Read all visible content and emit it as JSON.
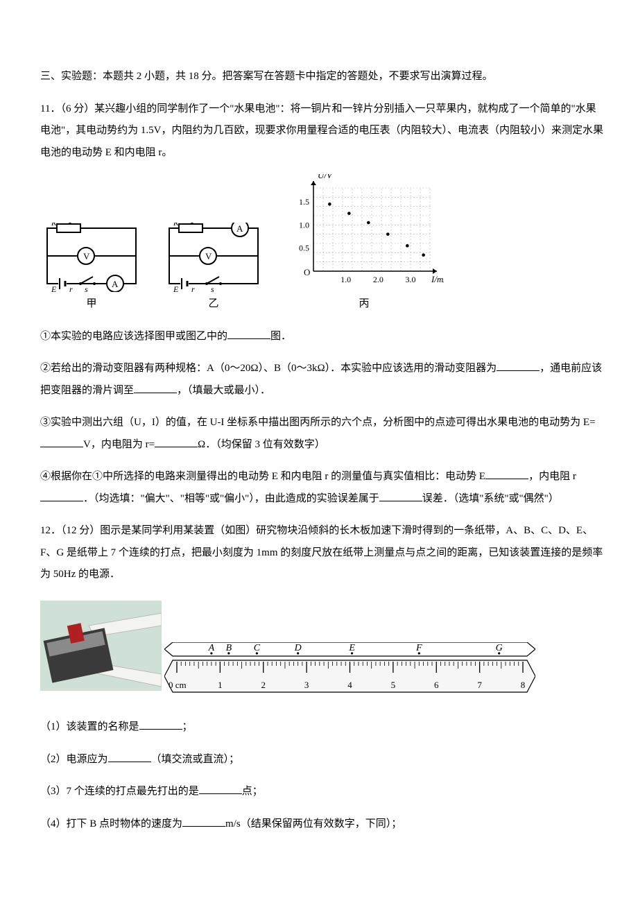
{
  "section_header": "三、实验题：本题共 2 小题，共 18 分。把答案写在答题卡中指定的答题处，不要求写出演算过程。",
  "q11": {
    "lead": "11．（6 分）某兴趣小组的同学制作了一个\"水果电池\"：将一铜片和一锌片分别插入一只苹果内，就构成了一个简单的\"水果电池\"，其电动势约为 1.5V，内阻约为几百欧，现要求你用量程合适的电压表（内阻较大）、电流表（内阻较小）来测定水果电池的电动势 E 和内电阻 r。",
    "circuit_jia_label": "甲",
    "circuit_yi_label": "乙",
    "chart": {
      "ylabel": "U/V",
      "xlabel": "I/mA",
      "yticks": [
        "0.5",
        "1.0",
        "1.5"
      ],
      "xticks": [
        "1.0",
        "2.0",
        "3.0"
      ],
      "caption": "丙",
      "axis_color": "#000000",
      "grid_color": "#9a9a9a",
      "point_color": "#000000",
      "bg": "#ffffff",
      "ylim": [
        0,
        1.8
      ],
      "xlim": [
        0,
        3.6
      ],
      "points": [
        [
          0.5,
          1.45
        ],
        [
          1.1,
          1.25
        ],
        [
          1.7,
          1.05
        ],
        [
          2.3,
          0.8
        ],
        [
          2.9,
          0.55
        ],
        [
          3.4,
          0.35
        ]
      ]
    },
    "p1_a": "①本实验的电路应该选择图甲或图乙中的",
    "p1_b": "图．",
    "p2_a": "②若给出的滑动变阻器有两种规格：A（0～20Ω）、B（0～3kΩ）．本实验中应该选用的滑动变阻器为",
    "p2_b": "，通电前应该把变阻器的滑片调至",
    "p2_c": "，（填最大或最小）．",
    "p3_a": "③实验中测出六组（U，I）的值，在 U-I 坐标系中描出图丙所示的六个点，分析图中的点迹可得出水果电池的电动势为 E=",
    "p3_b": "V，内电阻为 r=",
    "p3_c": "Ω．（均保留 3 位有效数字）",
    "p4_a": "④根据你在①中所选择的电路来测量得出的电动势 E 和内电阻 r 的测量值与真实值相比：电动势 E",
    "p4_b": "，内电阻 r",
    "p4_c": "．（均选填：\"偏大\"、\"相等\"或\"偏小\"），由此造成的实验误差属于",
    "p4_d": "误差．（选填\"系统\"或\"偶然\"）"
  },
  "q12": {
    "lead": "12．（12 分）图示是某同学利用某装置（如图）研究物块沿倾斜的长木板加速下滑时得到的一条纸带，A、B、C、D、E、F、G 是纸带上 7 个连续的打点，把最小刻度为 1mm 的刻度尺放在纸带上测量点与点之间的距离，已知该装置连接的是频率为 50Hz 的电源．",
    "photo": {
      "colors": {
        "bg": "#cfe0d6",
        "body": "#3a3a3a",
        "accent": "#b02020",
        "tape": "#f3f3f0"
      }
    },
    "ruler": {
      "length_cm": 8,
      "zero_label": "0 cm",
      "cm_labels": [
        "1",
        "2",
        "3",
        "4",
        "5",
        "6",
        "7",
        "8"
      ],
      "tape_points": [
        "A",
        "B",
        "C",
        "D",
        "E",
        "F",
        "G"
      ],
      "tape_color": "#ffffff",
      "ruler_color": "#f6f6f6",
      "tick_color": "#000000",
      "letter_pos_cm": [
        0.8,
        1.2,
        1.85,
        2.8,
        4.05,
        5.6,
        7.45
      ],
      "ruler_height": 46,
      "tape_height": 20
    },
    "p1_a": "（1）该装置的名称是",
    "p1_b": "；",
    "p2_a": "（2）电源应为",
    "p2_b": "（填交流或直流）；",
    "p3_a": "（3）7 个连续的打点最先打出的是",
    "p3_b": "点；",
    "p4_a": "（4）打下 B 点时物体的速度为",
    "p4_b": "m/s（结果保留两位有效数字，下同）；"
  }
}
